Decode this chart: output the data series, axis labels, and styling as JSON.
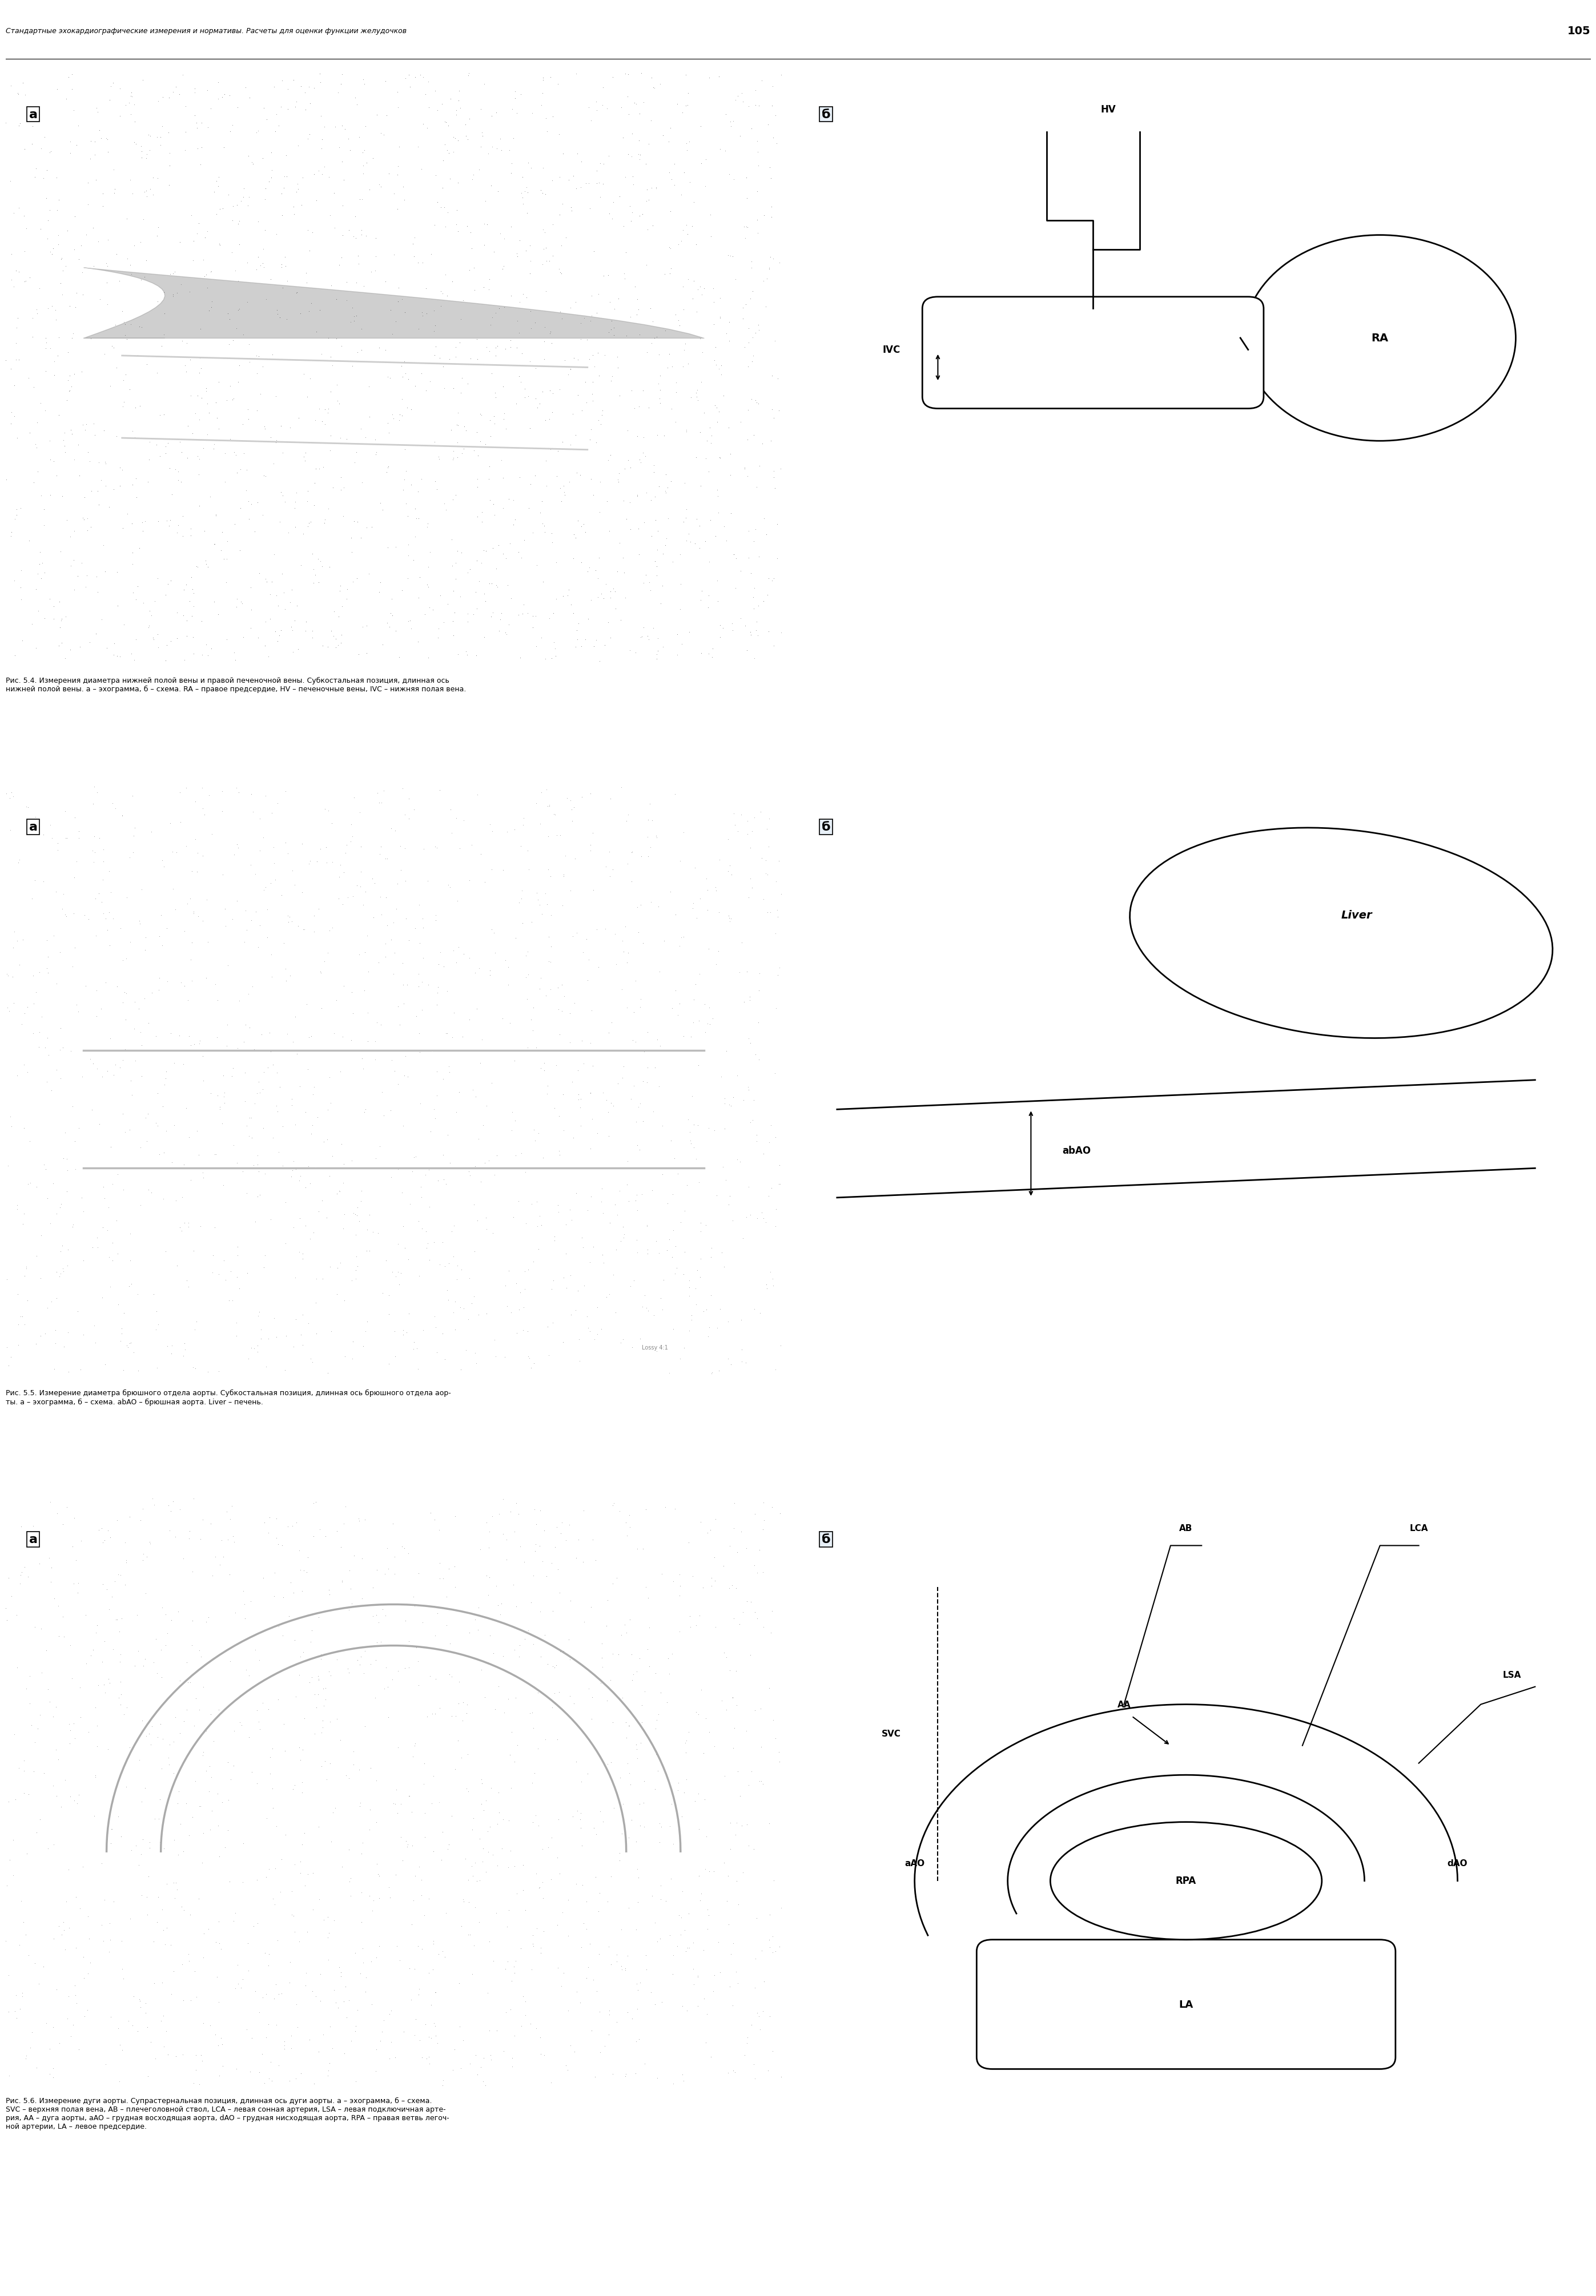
{
  "page_number": "105",
  "header_text": "Стандартные эхокардиографические измерения и нормативы. Расчеты для оценки функции желудочков",
  "bg_color": "#ffffff",
  "fig54_caption": "Рис. 5.4. Измерения диаметра нижней полой вены и правой печеночной вены. Субкостальная позиция, длинная ось\nнижней полой вены. а – эхограмма, б – схема. RA – правое предсердие, HV – печеночные вены, IVC – нижняя полая вена.",
  "fig55_caption": "Рис. 5.5. Измерение диаметра брюшного отдела аорты. Субкостальная позиция, длинная ось брюшного отдела аор-\nты. а – эхограмма, б – схема. abAO – брюшная аорта. Liver – печень.",
  "fig56_caption": "Рис. 5.6. Измерение дуги аорты. Супрастернальная позиция, длинная ось дуги аорты. а – эхограмма, б – схема.\nSVC – верхняя полая вена, AB – плечеголовной ствол, LCA – левая сонная артерия, LSA – левая подключичная арте-\nрия, AA – дуга аорты, aAO – грудная восходящая аорта, dAO – грудная нисходящая аорта, RPA – правая ветвь легоч-\nной артерии, LA – левое предсердие."
}
